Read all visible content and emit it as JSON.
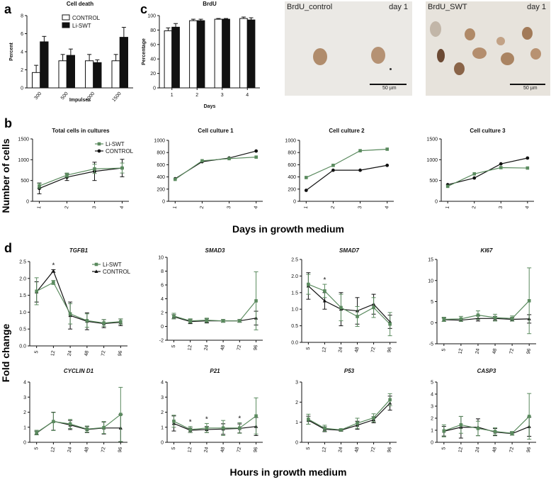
{
  "colors": {
    "li_swt": "#5a8a5e",
    "control": "#111111",
    "control_bar_fill": "#ffffff",
    "li_bar_fill": "#111111"
  },
  "panel_letters": {
    "a": "a",
    "b": "b",
    "c": "c",
    "d": "d"
  },
  "chart_data": [
    {
      "id": "a",
      "type": "bar",
      "title": "Cell death",
      "ylabel": "Percent",
      "xlabel": "Impulses",
      "categories": [
        "300",
        "500",
        "1000",
        "1500"
      ],
      "ylim": [
        0,
        8
      ],
      "yticks": [
        0,
        2,
        4,
        6,
        8
      ],
      "legend": [
        "CONTROL",
        "Li-SWT"
      ],
      "series": [
        {
          "name": "CONTROL",
          "values": [
            1.7,
            3.0,
            3.0,
            3.0
          ],
          "err": [
            0.8,
            0.7,
            0.7,
            0.7
          ]
        },
        {
          "name": "Li-SWT",
          "values": [
            5.1,
            3.6,
            2.8,
            5.6
          ],
          "err": [
            0.6,
            0.7,
            0.3,
            1.1
          ]
        }
      ]
    },
    {
      "id": "c",
      "type": "bar",
      "title": "BrdU",
      "ylabel": "Percentage",
      "xlabel": "Days",
      "categories": [
        "1",
        "2",
        "3",
        "4"
      ],
      "ylim": [
        0,
        100
      ],
      "yticks": [
        0,
        20,
        40,
        60,
        80,
        100
      ],
      "series": [
        {
          "name": "CONTROL",
          "values": [
            79,
            93,
            95,
            96
          ],
          "err": [
            4,
            2,
            1,
            2
          ]
        },
        {
          "name": "Li-SWT",
          "values": [
            84,
            93,
            95,
            94
          ],
          "err": [
            5,
            2,
            1,
            3
          ]
        }
      ]
    },
    {
      "id": "b1",
      "type": "line",
      "title": "Total cells in cultures",
      "x": [
        "1",
        "2",
        "3",
        "4"
      ],
      "ylim": [
        0,
        1500
      ],
      "yticks": [
        0,
        500,
        1000,
        1500
      ],
      "legend": [
        "Li-SWT",
        "CONTROL"
      ],
      "series": [
        {
          "name": "Li-SWT",
          "values": [
            370,
            630,
            780,
            800
          ],
          "err": [
            60,
            50,
            110,
            120
          ]
        },
        {
          "name": "CONTROL",
          "values": [
            310,
            580,
            720,
            800
          ],
          "err": [
            130,
            80,
            220,
            210
          ]
        }
      ]
    },
    {
      "id": "b2",
      "type": "line",
      "title": "Cell culture 1",
      "x": [
        "1",
        "2",
        "3",
        "4"
      ],
      "ylim": [
        0,
        1000
      ],
      "yticks": [
        0,
        200,
        400,
        600,
        800,
        1000
      ],
      "series": [
        {
          "name": "Li-SWT",
          "values": [
            360,
            665,
            700,
            725
          ]
        },
        {
          "name": "CONTROL",
          "values": [
            370,
            650,
            710,
            825
          ]
        }
      ]
    },
    {
      "id": "b3",
      "type": "line",
      "title": "Cell culture 2",
      "x": [
        "1",
        "2",
        "3",
        "4"
      ],
      "ylim": [
        0,
        1000
      ],
      "yticks": [
        0,
        200,
        400,
        600,
        800,
        1000
      ],
      "series": [
        {
          "name": "Li-SWT",
          "values": [
            390,
            590,
            830,
            855
          ]
        },
        {
          "name": "CONTROL",
          "values": [
            180,
            510,
            510,
            590
          ]
        }
      ]
    },
    {
      "id": "b4",
      "type": "line",
      "title": "Cell culture 3",
      "x": [
        "1",
        "2",
        "3",
        "4"
      ],
      "ylim": [
        0,
        1500
      ],
      "yticks": [
        0,
        500,
        1000,
        1500
      ],
      "series": [
        {
          "name": "Li-SWT",
          "values": [
            360,
            660,
            810,
            800
          ]
        },
        {
          "name": "CONTROL",
          "values": [
            400,
            560,
            900,
            1040
          ]
        }
      ]
    },
    {
      "id": "TGFB1",
      "type": "line",
      "title": "TGFB1",
      "x": [
        "5",
        "12",
        "24",
        "48",
        "72",
        "96"
      ],
      "ylim": [
        0,
        2.5
      ],
      "yticks": [
        0.0,
        0.5,
        1.0,
        1.5,
        2.0,
        2.5
      ],
      "legend": [
        "Li-SWT",
        "CONTROL"
      ],
      "stars": [
        "12"
      ],
      "series": [
        {
          "name": "Li-SWT",
          "values": [
            1.62,
            1.88,
            0.95,
            0.75,
            0.68,
            0.72
          ],
          "err": [
            0.4,
            0.06,
            0.3,
            0.2,
            0.1,
            0.08
          ]
        },
        {
          "name": "CONTROL",
          "values": [
            1.6,
            2.22,
            0.9,
            0.73,
            0.66,
            0.7
          ],
          "err": [
            0.3,
            0.04,
            0.4,
            0.25,
            0.12,
            0.1
          ]
        }
      ]
    },
    {
      "id": "SMAD3",
      "type": "line",
      "title": "SMAD3",
      "x": [
        "5",
        "12",
        "24",
        "48",
        "72",
        "96"
      ],
      "ylim": [
        -2,
        10
      ],
      "yticks": [
        -2,
        0,
        2,
        4,
        6,
        8,
        10
      ],
      "series": [
        {
          "name": "Li-SWT",
          "values": [
            1.5,
            0.8,
            0.9,
            0.8,
            0.8,
            3.7
          ],
          "err": [
            0.4,
            0.3,
            0.3,
            0.2,
            0.2,
            4.2
          ]
        },
        {
          "name": "CONTROL",
          "values": [
            1.4,
            0.7,
            0.8,
            0.8,
            0.8,
            1.2
          ],
          "err": [
            0.3,
            0.3,
            0.3,
            0.2,
            0.2,
            1.0
          ]
        }
      ]
    },
    {
      "id": "SMAD7",
      "type": "line",
      "title": "SMAD7",
      "x": [
        "5",
        "12",
        "24",
        "48",
        "72",
        "96"
      ],
      "ylim": [
        0,
        2.5
      ],
      "yticks": [
        0.0,
        0.5,
        1.0,
        1.5,
        2.0,
        2.5
      ],
      "stars": [
        "12"
      ],
      "series": [
        {
          "name": "Li-SWT",
          "values": [
            1.75,
            1.55,
            1.05,
            0.78,
            1.05,
            0.55
          ],
          "err": [
            0.3,
            0.2,
            0.4,
            0.3,
            0.3,
            0.35
          ]
        },
        {
          "name": "CONTROL",
          "values": [
            1.7,
            1.25,
            1.0,
            0.95,
            1.15,
            0.62
          ],
          "err": [
            0.4,
            0.25,
            0.5,
            0.4,
            0.3,
            0.2
          ]
        }
      ]
    },
    {
      "id": "KI67",
      "type": "line",
      "title": "KI67",
      "x": [
        "5",
        "12",
        "24",
        "48",
        "72",
        "96"
      ],
      "ylim": [
        -5,
        15
      ],
      "yticks": [
        -5,
        0,
        5,
        10,
        15
      ],
      "series": [
        {
          "name": "Li-SWT",
          "values": [
            0.8,
            0.9,
            1.8,
            1.2,
            1.0,
            5.2
          ],
          "err": [
            0.5,
            0.6,
            1.0,
            0.8,
            0.6,
            7.8
          ]
        },
        {
          "name": "CONTROL",
          "values": [
            0.7,
            0.6,
            1.0,
            1.0,
            0.8,
            0.9
          ],
          "err": [
            0.4,
            0.3,
            0.6,
            0.5,
            0.4,
            1.0
          ]
        }
      ]
    },
    {
      "id": "CYCLIN D1",
      "type": "line",
      "title": "CYCLIN D1",
      "x": [
        "5",
        "12",
        "24",
        "48",
        "72",
        "96"
      ],
      "ylim": [
        0,
        4
      ],
      "yticks": [
        0,
        1,
        2,
        3,
        4
      ],
      "series": [
        {
          "name": "Li-SWT",
          "values": [
            0.65,
            1.38,
            1.22,
            0.88,
            0.98,
            1.85
          ],
          "err": [
            0.15,
            0.6,
            0.3,
            0.2,
            0.4,
            1.8
          ]
        },
        {
          "name": "CONTROL",
          "values": [
            0.62,
            1.4,
            1.15,
            0.85,
            0.95,
            0.95
          ],
          "err": [
            0.12,
            0.6,
            0.3,
            0.2,
            0.4,
            0.9
          ]
        }
      ]
    },
    {
      "id": "P21",
      "type": "line",
      "title": "P21",
      "x": [
        "5",
        "12",
        "24",
        "48",
        "72",
        "96"
      ],
      "ylim": [
        0,
        4
      ],
      "yticks": [
        0,
        1,
        2,
        3,
        4
      ],
      "stars": [
        "12",
        "24",
        "72"
      ],
      "series": [
        {
          "name": "Li-SWT",
          "values": [
            1.4,
            0.85,
            0.95,
            0.95,
            0.95,
            1.75
          ],
          "err": [
            0.4,
            0.2,
            0.3,
            0.5,
            0.35,
            1.2
          ]
        },
        {
          "name": "CONTROL",
          "values": [
            1.25,
            0.8,
            0.85,
            0.88,
            0.92,
            1.05
          ],
          "err": [
            0.5,
            0.15,
            0.2,
            0.35,
            0.3,
            0.6
          ]
        }
      ]
    },
    {
      "id": "P53",
      "type": "line",
      "title": "P53",
      "x": [
        "5",
        "12",
        "24",
        "48",
        "72",
        "96"
      ],
      "ylim": [
        0,
        3
      ],
      "yticks": [
        0,
        1,
        2,
        3
      ],
      "series": [
        {
          "name": "Li-SWT",
          "values": [
            1.15,
            0.7,
            0.62,
            0.95,
            1.22,
            2.12
          ],
          "err": [
            0.25,
            0.15,
            0.05,
            0.25,
            0.2,
            0.3
          ]
        },
        {
          "name": "CONTROL",
          "values": [
            1.1,
            0.65,
            0.6,
            0.85,
            1.12,
            1.95
          ],
          "err": [
            0.2,
            0.12,
            0.05,
            0.2,
            0.15,
            0.35
          ]
        }
      ]
    },
    {
      "id": "CASP3",
      "type": "line",
      "title": "CASP3",
      "x": [
        "5",
        "12",
        "24",
        "48",
        "72",
        "96"
      ],
      "ylim": [
        0,
        5
      ],
      "yticks": [
        0,
        1,
        2,
        3,
        4,
        5
      ],
      "series": [
        {
          "name": "Li-SWT",
          "values": [
            0.95,
            1.45,
            1.15,
            0.9,
            0.75,
            2.15
          ],
          "err": [
            0.5,
            0.7,
            0.6,
            0.3,
            0.15,
            1.9
          ]
        },
        {
          "name": "CONTROL",
          "values": [
            0.92,
            1.25,
            1.25,
            0.85,
            0.72,
            1.3
          ],
          "err": [
            0.4,
            0.9,
            0.7,
            0.3,
            0.12,
            0.8
          ]
        }
      ]
    }
  ],
  "shared_labels": {
    "b_ylabel": "Number of cells",
    "b_xlabel": "Days in growth medium",
    "d_ylabel": "Fold change",
    "d_xlabel": "Hours in growth medium",
    "star": "*"
  },
  "micrographs": [
    {
      "label": "BrdU_control",
      "day": "day 1",
      "scale": "50 µm"
    },
    {
      "label": "BrdU_SWT",
      "day": "day 1",
      "scale": "50 µm"
    }
  ]
}
